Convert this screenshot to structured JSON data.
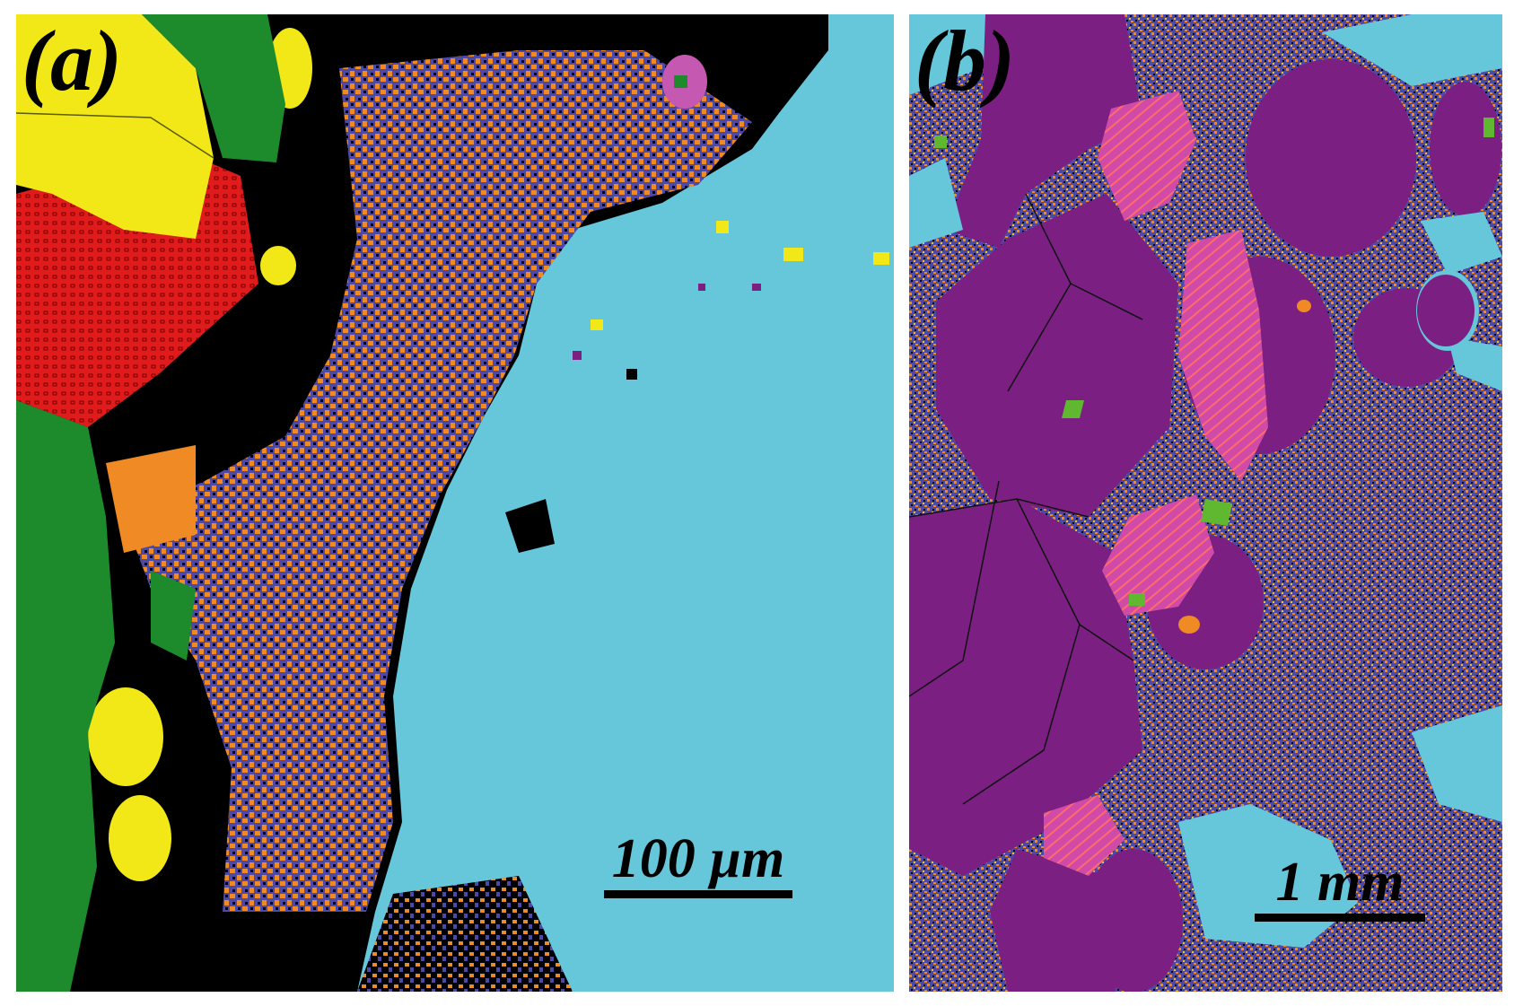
{
  "panels": [
    {
      "label": "(a)",
      "scale_label": "100 µm",
      "phase_colors": {
        "background": "#66c6da",
        "matrix": "#000000",
        "orange": "#f08a24",
        "blue": "#4d4aa6",
        "green": "#1d8a2c",
        "yellow": "#f2e818",
        "red": "#e11b1b",
        "magenta": "#c558b0"
      }
    },
    {
      "label": "(b)",
      "scale_label": "1 mm",
      "phase_colors": {
        "background": "#66c6da",
        "purple": "#7b1f82",
        "pink": "#d04ba8",
        "lamellae": "#ff6b6b",
        "speckle-blue": "#4d4aa6",
        "speckle-orange": "#f08a24",
        "speckle-yellow": "#f2c21e",
        "green": "#5fb82f"
      }
    }
  ]
}
